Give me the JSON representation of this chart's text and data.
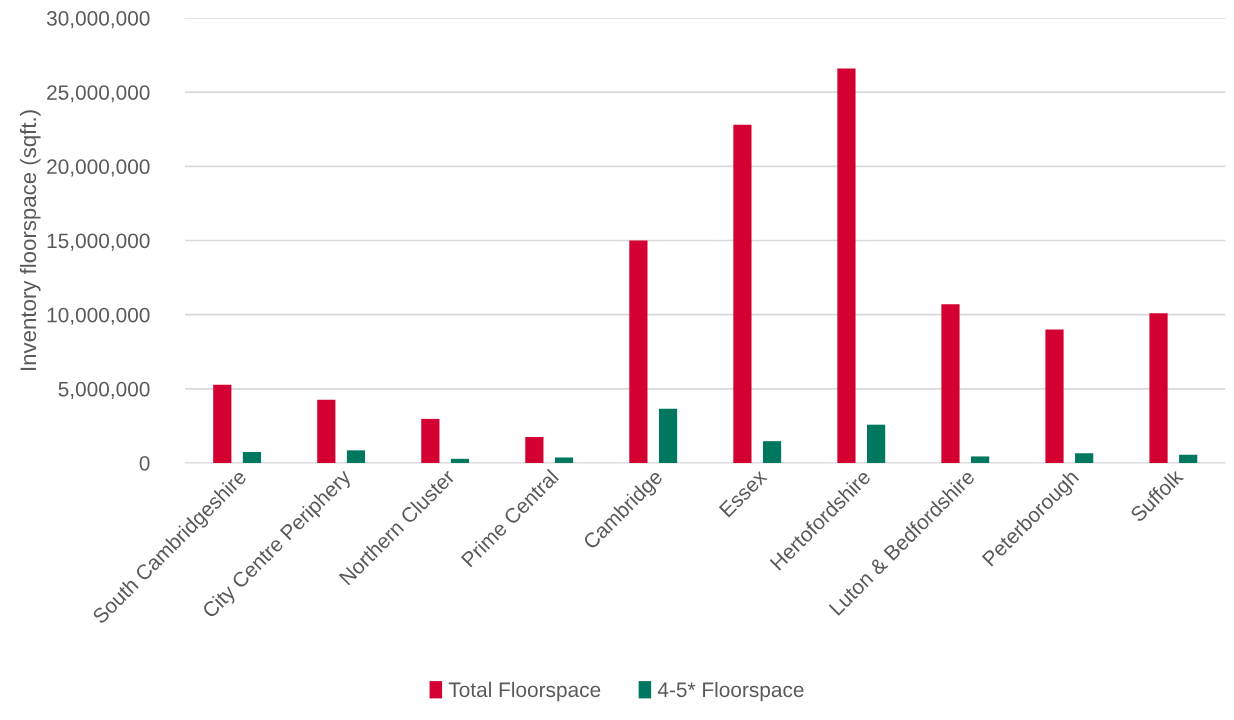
{
  "chart_data": {
    "type": "bar",
    "ylabel": "Inventory floorspace (sqft.)",
    "categories": [
      "South Cambridgeshire",
      "City Centre Periphery",
      "Northern Cluster",
      "Prime Central",
      "Cambridge",
      "Essex",
      "Hertofordshire",
      "Luton & Bedfordshire",
      "Peterborough",
      "Suffolk"
    ],
    "series": [
      {
        "name": "Total Floorspace",
        "color": "#d50032",
        "values": [
          5280000,
          4260000,
          2970000,
          1750000,
          15000000,
          22800000,
          26600000,
          10700000,
          8990000,
          10100000
        ]
      },
      {
        "name": "4-5* Floorspace",
        "color": "#00775f",
        "values": [
          740000,
          850000,
          280000,
          370000,
          3660000,
          1470000,
          2580000,
          440000,
          650000,
          550000
        ]
      }
    ],
    "ylim": [
      0,
      30000000
    ],
    "yticks": [
      {
        "value": 0,
        "label": "0"
      },
      {
        "value": 5000000,
        "label": "5,000,000"
      },
      {
        "value": 10000000,
        "label": "10,000,000"
      },
      {
        "value": 15000000,
        "label": "15,000,000"
      },
      {
        "value": 20000000,
        "label": "20,000,000"
      },
      {
        "value": 25000000,
        "label": "25,000,000"
      },
      {
        "value": 30000000,
        "label": "30,000,000"
      }
    ],
    "grid": "y",
    "legend": "bottom"
  }
}
